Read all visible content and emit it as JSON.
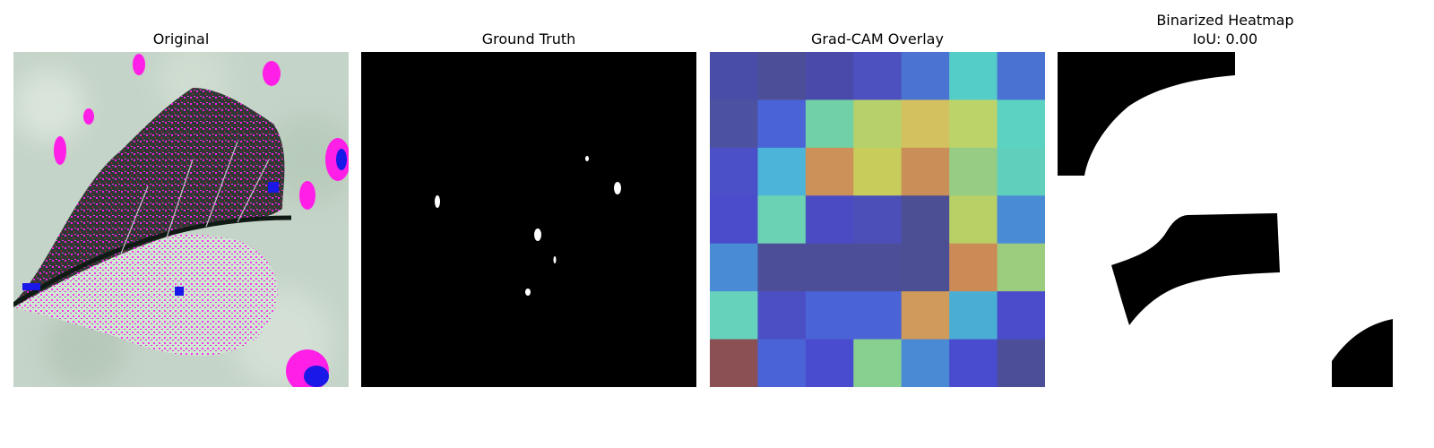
{
  "panels": {
    "original": {
      "title": "Original"
    },
    "ground_truth": {
      "title": "Ground Truth"
    },
    "gradcam": {
      "title": "Grad-CAM Overlay",
      "grid": [
        [
          "#4a4da8",
          "#4c4f98",
          "#4a4aaa",
          "#4d50bf",
          "#4a73d2",
          "#54ccc8",
          "#4a72d3"
        ],
        [
          "#4d52a0",
          "#4a63d6",
          "#72d0a6",
          "#b6d06c",
          "#d3c05f",
          "#bcd36a",
          "#5bd2c2"
        ],
        [
          "#4b4fc8",
          "#4cb4d8",
          "#cc9158",
          "#c8cc5a",
          "#ca8f58",
          "#96cc84",
          "#60d0bc"
        ],
        [
          "#4a4ccc",
          "#6cd2b4",
          "#4b4cc4",
          "#4c4fb8",
          "#4c4f94",
          "#b8d066",
          "#4a8bd6"
        ],
        [
          "#4a8bd6",
          "#4c4f98",
          "#4c4f98",
          "#4c4f98",
          "#4c4f94",
          "#cc8a56",
          "#9ccc7e"
        ],
        [
          "#66d2bc",
          "#4c4fc4",
          "#4a63d6",
          "#4a63d6",
          "#d09a5a",
          "#4aaed4",
          "#4a4ccc"
        ],
        [
          "#8a5054",
          "#4a63d6",
          "#4a4cd0",
          "#88d090",
          "#4a8ad4",
          "#4a4cd0",
          "#4c4f98"
        ]
      ]
    },
    "binarized": {
      "title": "Binarized Heatmap",
      "iou": "IoU: 0.00"
    }
  }
}
